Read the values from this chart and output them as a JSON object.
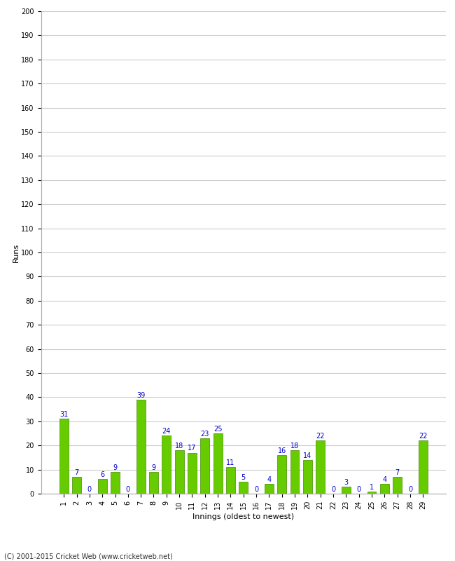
{
  "title": "",
  "xlabel": "Innings (oldest to newest)",
  "ylabel": "Runs",
  "values": [
    31,
    7,
    0,
    6,
    9,
    0,
    39,
    9,
    24,
    18,
    17,
    23,
    25,
    11,
    5,
    0,
    4,
    16,
    18,
    14,
    22,
    0,
    3,
    0,
    1,
    4,
    7,
    0,
    22
  ],
  "categories": [
    "1",
    "2",
    "3",
    "4",
    "5",
    "6",
    "7",
    "8",
    "9",
    "10",
    "11",
    "12",
    "13",
    "14",
    "15",
    "16",
    "17",
    "18",
    "19",
    "20",
    "21",
    "22",
    "23",
    "24",
    "25",
    "26",
    "27",
    "28",
    "29"
  ],
  "bar_color": "#66cc00",
  "bar_edge_color": "#448800",
  "label_color": "#0000cc",
  "ylim": [
    0,
    200
  ],
  "yticks": [
    0,
    10,
    20,
    30,
    40,
    50,
    60,
    70,
    80,
    90,
    100,
    110,
    120,
    130,
    140,
    150,
    160,
    170,
    180,
    190,
    200
  ],
  "grid_color": "#cccccc",
  "bg_color": "#ffffff",
  "label_fontsize": 8,
  "tick_fontsize": 7,
  "annotation_fontsize": 7,
  "footer": "(C) 2001-2015 Cricket Web (www.cricketweb.net)"
}
